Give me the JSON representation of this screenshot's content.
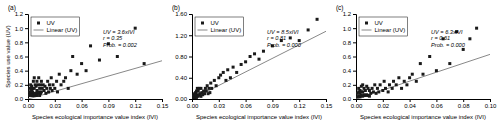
{
  "chart_data": [
    {
      "type": "scatter",
      "title": "(a)",
      "xlabel": "Species ecological importance value index (IVI)",
      "ylabel": "Species use value (UV)",
      "annotations": [
        "UV = 3.6xIVI\nr = 0.35\nProb. = 0.002"
      ],
      "xlim": [
        0,
        0.15
      ],
      "ylim": [
        0,
        1.2
      ],
      "xticks": [
        {
          "value": 0,
          "label": "0.00"
        },
        0.03,
        0.06,
        0.09,
        0.12,
        0.15
      ],
      "yticks": [
        {
          "value": 0,
          "label": "0.0"
        },
        0.2,
        0.4,
        0.6,
        0.8,
        {
          "value": 1,
          "label": "1.0"
        },
        1.2
      ],
      "grid": false,
      "legend": "upper left",
      "series": [
        {
          "name": "UV",
          "type": "scatter",
          "marker": "square",
          "color": "#1a1a1a",
          "x": [
            0.001,
            0.001,
            0.002,
            0.002,
            0.003,
            0.003,
            0.003,
            0.004,
            0.004,
            0.004,
            0.005,
            0.005,
            0.005,
            0.006,
            0.006,
            0.007,
            0.007,
            0.007,
            0.008,
            0.008,
            0.009,
            0.009,
            0.01,
            0.01,
            0.01,
            0.011,
            0.011,
            0.012,
            0.012,
            0.013,
            0.013,
            0.014,
            0.014,
            0.015,
            0.015,
            0.016,
            0.017,
            0.018,
            0.019,
            0.02,
            0.021,
            0.022,
            0.023,
            0.024,
            0.025,
            0.026,
            0.027,
            0.028,
            0.03,
            0.032,
            0.033,
            0.035,
            0.037,
            0.04,
            0.042,
            0.045,
            0.048,
            0.05,
            0.055,
            0.06,
            0.065,
            0.07,
            0.08,
            0.09,
            0.1,
            0.12,
            0.13
          ],
          "values": [
            0.05,
            0.1,
            0.08,
            0.15,
            0.05,
            0.1,
            0.2,
            0.07,
            0.12,
            0.18,
            0.05,
            0.1,
            0.15,
            0.05,
            0.25,
            0.08,
            0.15,
            0.3,
            0.05,
            0.2,
            0.08,
            0.18,
            0.05,
            0.12,
            0.25,
            0.08,
            0.2,
            0.1,
            0.3,
            0.05,
            0.15,
            0.08,
            0.2,
            0.1,
            0.25,
            0.15,
            0.2,
            0.12,
            0.18,
            0.08,
            0.15,
            0.25,
            0.1,
            0.2,
            0.15,
            0.3,
            0.12,
            0.2,
            0.15,
            0.25,
            0.1,
            0.35,
            0.2,
            0.25,
            0.3,
            0.15,
            0.4,
            0.6,
            0.35,
            0.5,
            0.4,
            0.75,
            0.55,
            0.78,
            0.6,
            1.0,
            0.5
          ]
        },
        {
          "name": "Linear (UV)",
          "type": "line",
          "color": "#888888",
          "x": [
            0,
            0.15
          ],
          "values": [
            0,
            0.54
          ]
        }
      ]
    },
    {
      "type": "scatter",
      "title": "(b)",
      "xlabel": "Species ecological importance value index (IVI)",
      "annotations": [
        "UV = 8.5xIVI\nr = 0.81\nProb. = 0.000"
      ],
      "xlim": [
        0,
        0.15
      ],
      "ylim": [
        0,
        1.6
      ],
      "xticks": [
        {
          "value": 0,
          "label": "0.00"
        },
        0.03,
        0.06,
        0.09,
        0.12,
        0.15
      ],
      "yticks": [
        {
          "value": 0,
          "label": "0.00"
        },
        {
          "value": 0.4,
          "label": "0.40"
        },
        {
          "value": 0.8,
          "label": "0.80"
        },
        {
          "value": 1.2,
          "label": "1.20"
        },
        {
          "value": 1.6,
          "label": "1.60"
        }
      ],
      "grid": false,
      "legend": "upper left",
      "series": [
        {
          "name": "UV",
          "type": "scatter",
          "marker": "square",
          "color": "#1a1a1a",
          "x": [
            0.001,
            0.001,
            0.002,
            0.002,
            0.003,
            0.003,
            0.003,
            0.004,
            0.004,
            0.005,
            0.005,
            0.005,
            0.006,
            0.006,
            0.007,
            0.007,
            0.008,
            0.008,
            0.009,
            0.01,
            0.01,
            0.011,
            0.012,
            0.013,
            0.014,
            0.015,
            0.016,
            0.017,
            0.018,
            0.019,
            0.02,
            0.021,
            0.022,
            0.025,
            0.027,
            0.03,
            0.032,
            0.035,
            0.038,
            0.04,
            0.043,
            0.046,
            0.05,
            0.055,
            0.06,
            0.065,
            0.07,
            0.075,
            0.08,
            0.09,
            0.1,
            0.11,
            0.12,
            0.13,
            0.14
          ],
          "values": [
            0.02,
            0.05,
            0.03,
            0.08,
            0.02,
            0.06,
            0.1,
            0.04,
            0.12,
            0.03,
            0.08,
            0.15,
            0.05,
            0.2,
            0.06,
            0.15,
            0.08,
            0.2,
            0.1,
            0.05,
            0.2,
            0.12,
            0.08,
            0.15,
            0.1,
            0.2,
            0.15,
            0.25,
            0.1,
            0.2,
            0.12,
            0.3,
            0.2,
            0.35,
            0.25,
            0.4,
            0.45,
            0.5,
            0.35,
            0.55,
            0.4,
            0.6,
            0.5,
            0.65,
            0.7,
            0.8,
            0.85,
            0.75,
            0.9,
            1.0,
            1.1,
            1.15,
            1.1,
            1.3,
            1.5
          ]
        },
        {
          "name": "Linear (UV)",
          "type": "line",
          "color": "#888888",
          "x": [
            0,
            0.15
          ],
          "values": [
            0,
            1.275
          ]
        }
      ]
    },
    {
      "type": "scatter",
      "title": "(c)",
      "xlabel": "Species ecological importance value index (IVI)",
      "annotations": [
        "UV = 6.3xIVI\nr = 0.61\nProb. = 0.000"
      ],
      "xlim": [
        0,
        0.1
      ],
      "ylim": [
        0,
        1.2
      ],
      "xticks": [
        {
          "value": 0,
          "label": "0.00"
        },
        0.02,
        0.04,
        0.06,
        0.08,
        {
          "value": 0.1,
          "label": "0.10"
        }
      ],
      "yticks": [
        {
          "value": 0,
          "label": "0.0"
        },
        0.2,
        0.4,
        0.6,
        0.8,
        {
          "value": 1,
          "label": "1.0"
        },
        1.2
      ],
      "grid": false,
      "legend": "upper left",
      "series": [
        {
          "name": "UV",
          "type": "scatter",
          "marker": "square",
          "color": "#1a1a1a",
          "x": [
            0.001,
            0.001,
            0.002,
            0.002,
            0.002,
            0.003,
            0.003,
            0.003,
            0.004,
            0.004,
            0.004,
            0.005,
            0.005,
            0.005,
            0.006,
            0.006,
            0.007,
            0.007,
            0.008,
            0.008,
            0.009,
            0.009,
            0.01,
            0.01,
            0.011,
            0.012,
            0.013,
            0.014,
            0.015,
            0.016,
            0.017,
            0.018,
            0.02,
            0.021,
            0.022,
            0.024,
            0.025,
            0.027,
            0.028,
            0.03,
            0.032,
            0.034,
            0.036,
            0.038,
            0.04,
            0.042,
            0.045,
            0.048,
            0.05,
            0.055,
            0.06,
            0.065,
            0.07,
            0.075,
            0.08,
            0.085,
            0.09
          ],
          "values": [
            0.03,
            0.08,
            0.04,
            0.1,
            0.15,
            0.03,
            0.08,
            0.12,
            0.05,
            0.1,
            0.18,
            0.04,
            0.1,
            0.2,
            0.06,
            0.15,
            0.05,
            0.12,
            0.06,
            0.18,
            0.05,
            0.15,
            0.04,
            0.12,
            0.08,
            0.15,
            0.1,
            0.2,
            0.08,
            0.15,
            0.1,
            0.2,
            0.12,
            0.25,
            0.15,
            0.1,
            0.2,
            0.15,
            0.25,
            0.2,
            0.3,
            0.15,
            0.25,
            0.2,
            0.3,
            0.35,
            0.25,
            0.5,
            0.35,
            0.6,
            0.4,
            0.85,
            0.5,
            0.95,
            0.7,
            0.85,
            1.0
          ]
        },
        {
          "name": "Linear (UV)",
          "type": "line",
          "color": "#888888",
          "x": [
            0,
            0.1
          ],
          "values": [
            0,
            0.63
          ]
        }
      ]
    }
  ]
}
